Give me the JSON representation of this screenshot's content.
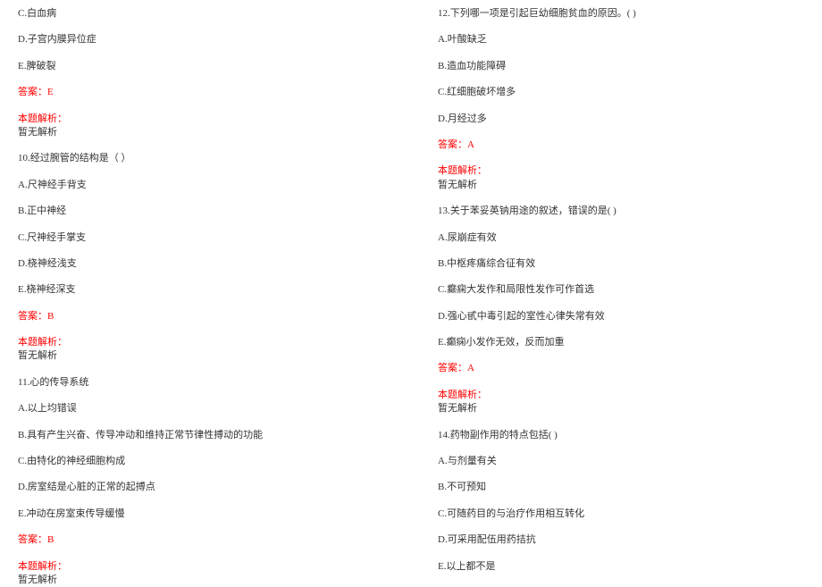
{
  "left": {
    "q9_c": "C.白血病",
    "q9_d": "D.子宫内膜异位症",
    "q9_e": "E.脾破裂",
    "q9_ans": "答案：E",
    "q9_exp_label": "本题解析：",
    "q9_exp_text": "暂无解析",
    "q10_stem": "10.经过腕管的结构是（ ）",
    "q10_a": "A.尺神经手背支",
    "q10_b": "B.正中神经",
    "q10_c": "C.尺神经手掌支",
    "q10_d": "D.桡神经浅支",
    "q10_e": "E.桡神经深支",
    "q10_ans": "答案：B",
    "q10_exp_label": "本题解析：",
    "q10_exp_text": "暂无解析",
    "q11_stem": "11.心的传导系统",
    "q11_a": "A.以上均错误",
    "q11_b": "B.具有产生兴奋、传导冲动和维持正常节律性搏动的功能",
    "q11_c": "C.由特化的神经细胞构成",
    "q11_d": "D.房室结是心脏的正常的起搏点",
    "q11_e": "E.冲动在房室束传导缓慢",
    "q11_ans": "答案：B",
    "q11_exp_label": "本题解析：",
    "q11_exp_text": "暂无解析"
  },
  "right": {
    "q12_stem": "12.下列哪一项是引起巨幼细胞贫血的原因。( )",
    "q12_a": "A.叶酸缺乏",
    "q12_b": "B.造血功能障碍",
    "q12_c": "C.红细胞破坏增多",
    "q12_d": "D.月经过多",
    "q12_ans": "答案：A",
    "q12_exp_label": "本题解析：",
    "q12_exp_text": "暂无解析",
    "q13_stem": "13.关于苯妥英钠用途的叙述，错误的是(    )",
    "q13_a": "A.尿崩症有效",
    "q13_b": "B.中枢疼痛综合征有效",
    "q13_c": "C.癫痫大发作和局限性发作可作首选",
    "q13_d": "D.强心甙中毒引起的室性心律失常有效",
    "q13_e": "E.癫痫小发作无效，反而加重",
    "q13_ans": "答案：A",
    "q13_exp_label": "本题解析：",
    "q13_exp_text": "暂无解析",
    "q14_stem": "14.药物副作用的特点包括( )",
    "q14_a": "A.与剂量有关",
    "q14_b": "B.不可预知",
    "q14_c": "C.可随药目的与治疗作用相互转化",
    "q14_d": "D.可采用配伍用药拮抗",
    "q14_e": "E.以上都不是"
  },
  "colors": {
    "text": "#333333",
    "answer": "#ff0000",
    "background": "#ffffff"
  },
  "typography": {
    "font_family": "SimSun",
    "font_size_pt": 8
  }
}
